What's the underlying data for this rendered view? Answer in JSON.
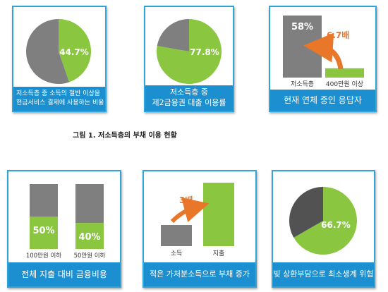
{
  "figure_title": "그림 1. 저소득층의 부채 이용 현황",
  "colors": {
    "green": "#8ac640",
    "gray": "#7f7f7f",
    "darkgray": "#525252",
    "orange": "#e8772a",
    "caption_blue": "#1c8fd1",
    "card_border": "#31a5d9"
  },
  "cards": {
    "c1": {
      "caption_line1": "저소득층 중 소득의 절반 이상을",
      "caption_line2": "현금서비스 결제에 사용하는 비율"
    },
    "c2": {
      "caption_line1": "저소득층 중",
      "caption_line2": "제2금융권 대출 이용률"
    },
    "c3": {
      "caption": "현재 연체 중인 응답자",
      "multiplier_label": "6.7배"
    },
    "c4": {
      "caption": "전체 지출 대비 금융비용"
    },
    "c5": {
      "caption": "적은 가처분소득으로 부채 증가",
      "multiplier_label": "3배"
    },
    "c6": {
      "caption": "빚 상환부담으로 최소생계 위협"
    }
  },
  "chart_data": [
    {
      "type": "pie",
      "values": [
        44.7,
        55.3
      ],
      "labels": [
        "44.7%",
        ""
      ],
      "colors": [
        "green",
        "gray"
      ]
    },
    {
      "type": "pie",
      "values": [
        77.8,
        22.2
      ],
      "labels": [
        "77.8%",
        ""
      ],
      "colors": [
        "green",
        "gray"
      ]
    },
    {
      "type": "bar",
      "categories": [
        "저소득층",
        "400만원 이상"
      ],
      "values": [
        58,
        8.7
      ],
      "labels": [
        "58%",
        ""
      ],
      "colors": [
        "gray",
        "green"
      ]
    },
    {
      "type": "bar",
      "categories": [
        "100만원 이하",
        "50만원 이하"
      ],
      "values": [
        50,
        40
      ],
      "labels": [
        "50%",
        "40%"
      ],
      "colors": [
        "green",
        "green"
      ],
      "stack_rest": "gray",
      "ylim": [
        0,
        100
      ]
    },
    {
      "type": "bar",
      "categories": [
        "소득",
        "지출"
      ],
      "values": [
        1,
        3
      ],
      "colors": [
        "gray",
        "green"
      ]
    },
    {
      "type": "pie",
      "values": [
        66.7,
        33.3
      ],
      "labels": [
        "66.7%",
        ""
      ],
      "colors": [
        "green",
        "darkgray"
      ]
    }
  ]
}
